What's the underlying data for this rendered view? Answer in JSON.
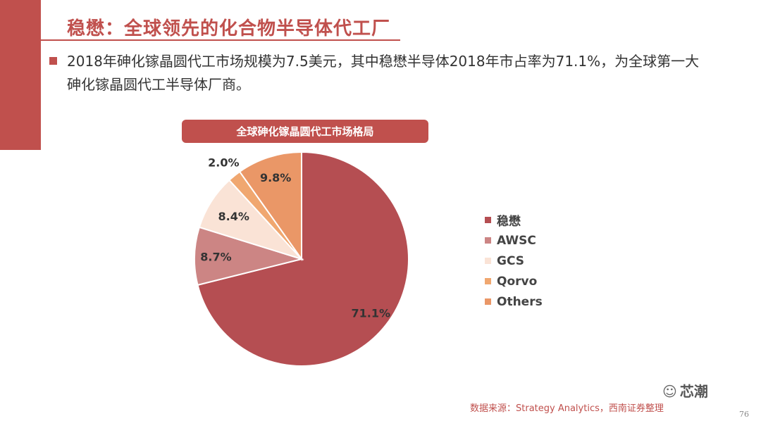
{
  "header": {
    "title": "稳懋：全球领先的化合物半导体代工厂"
  },
  "bullet": {
    "text": "2018年砷化镓晶圆代工市场规模为7.5美元，其中稳懋半导体2018年市占率为71.1%，为全球第一大砷化镓晶圆代工半导体厂商。"
  },
  "chart_data": {
    "type": "pie",
    "title": "全球砷化镓晶圆代工市场格局",
    "categories": [
      "稳懋",
      "AWSC",
      "GCS",
      "Qorvo",
      "Others"
    ],
    "values": [
      71.1,
      8.7,
      8.4,
      2.0,
      9.8
    ],
    "value_labels": [
      "71.1%",
      "8.7%",
      "8.4%",
      "2.0%",
      "9.8%"
    ],
    "colors": [
      "#b54e52",
      "#cc8584",
      "#fae3d6",
      "#f0a770",
      "#ea9767"
    ],
    "label_colors": [
      "#333333",
      "#333333",
      "#333333",
      "#333333",
      "#333333"
    ],
    "legend_position": "right"
  },
  "footer": {
    "source": "数据来源：Strategy Analytics，西南证券整理",
    "watermark": "芯潮",
    "watermark_icon": "wechat-icon",
    "page_number": "76"
  }
}
